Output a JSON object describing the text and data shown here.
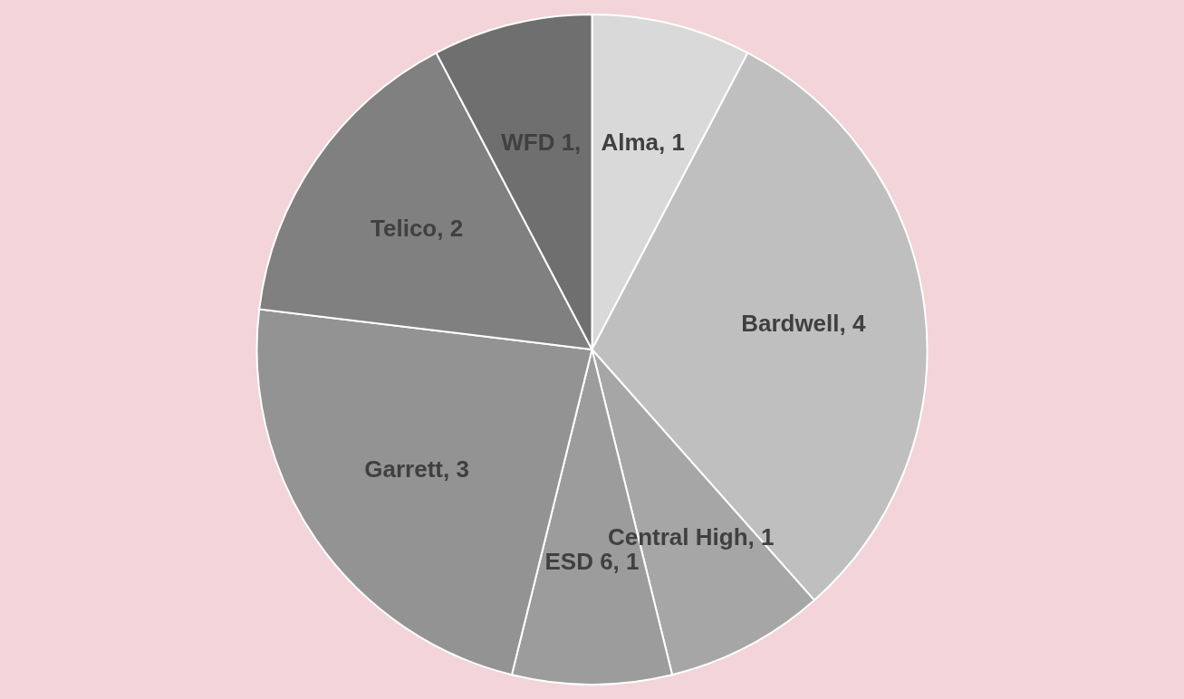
{
  "chart_data": {
    "type": "pie",
    "categories": [
      "Alma",
      "Bardwell",
      "Central High",
      "ESD 6",
      "Garrett",
      "Telico",
      "WFD"
    ],
    "values": [
      1,
      4,
      1,
      1,
      3,
      2,
      1
    ],
    "value_labels": [
      "1",
      "4",
      "1",
      "1",
      "3",
      "2",
      "1,"
    ],
    "colors": [
      "#d9d9d9",
      "#bfbfbf",
      "#a6a6a6",
      "#9c9c9c",
      "#939393",
      "#808080",
      "#6f6f6f"
    ]
  }
}
